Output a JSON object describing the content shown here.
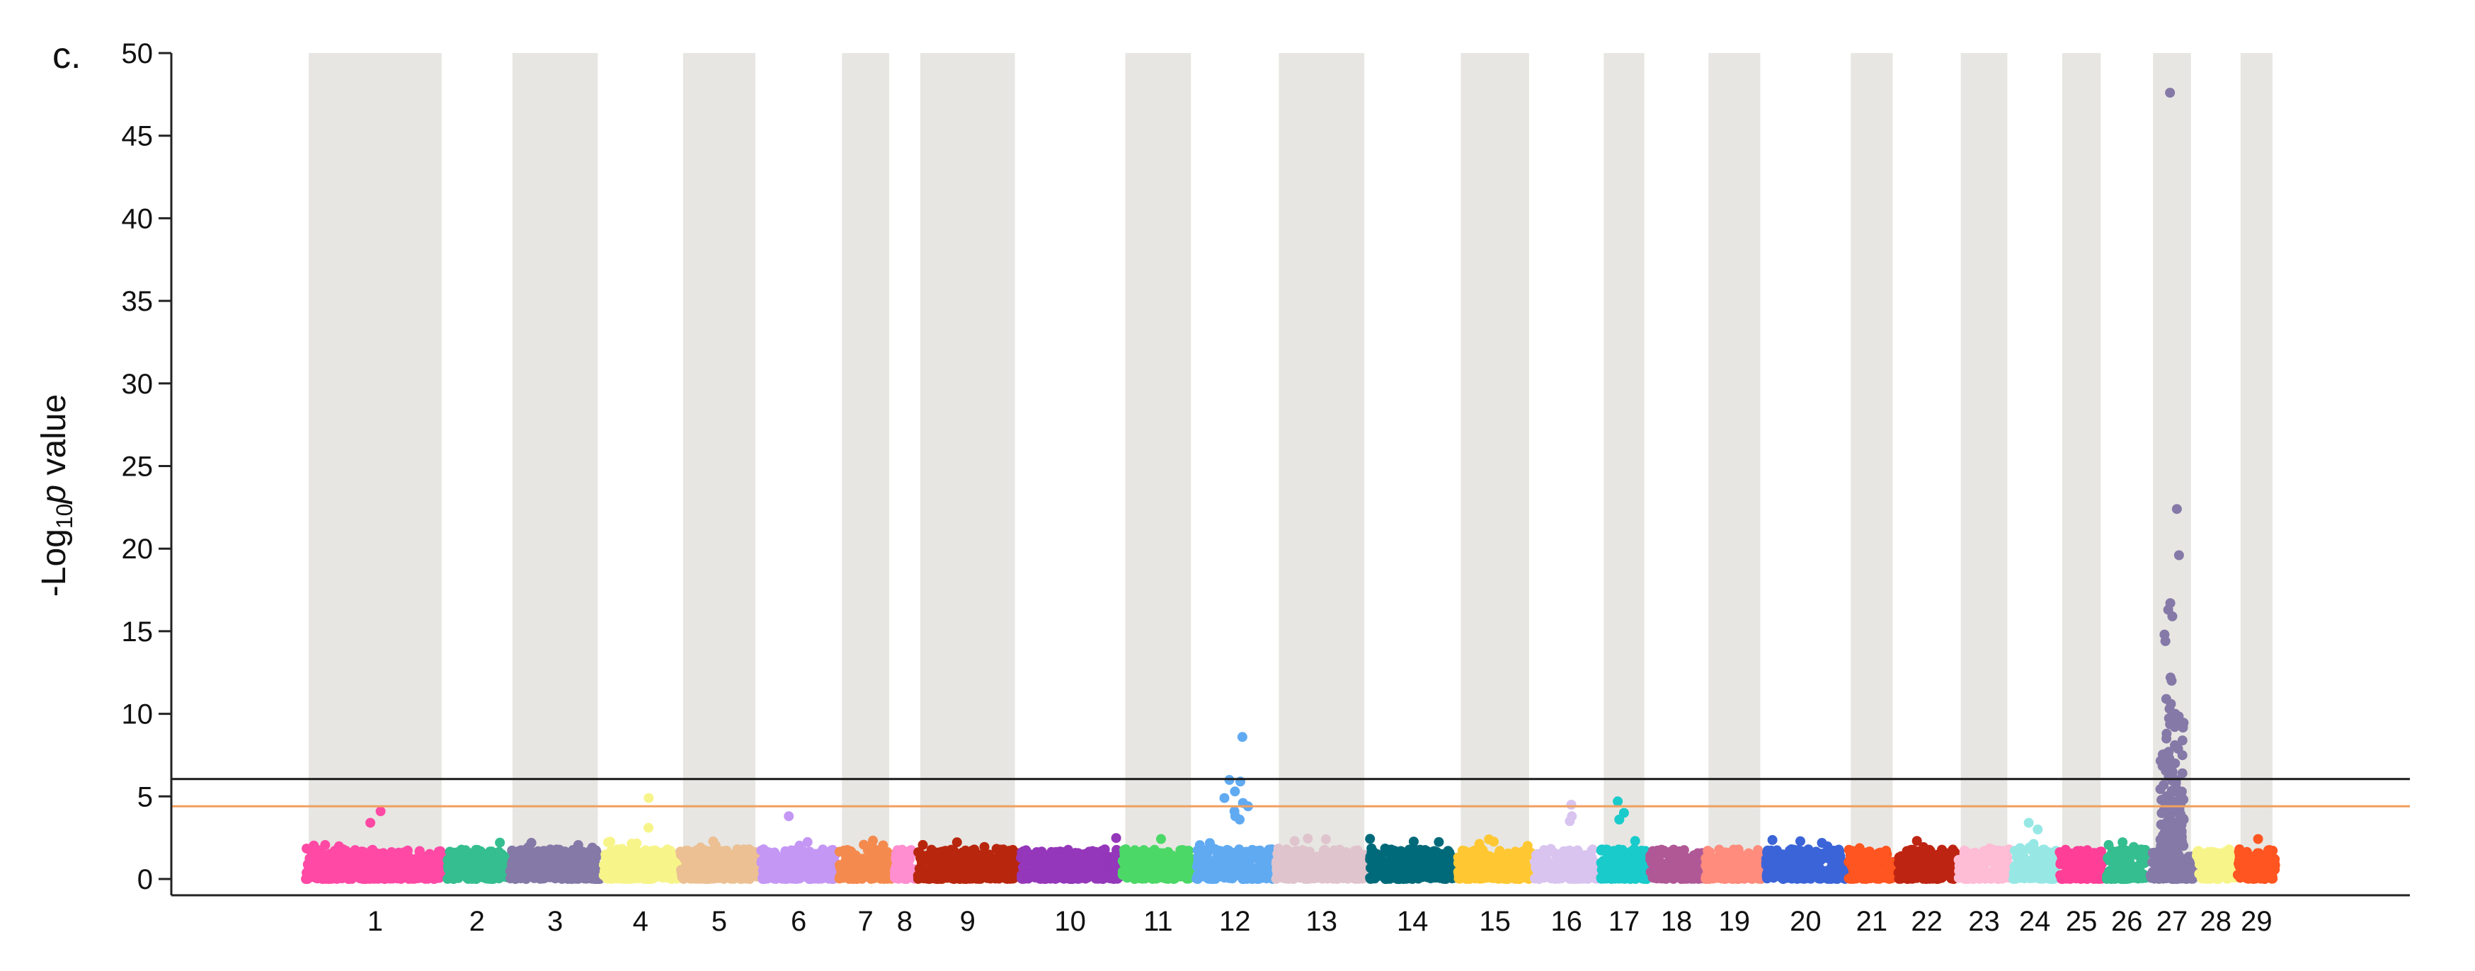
{
  "panel_label": "c.",
  "chart_data": {
    "type": "scatter",
    "subtype": "manhattan",
    "ylabel_parts": {
      "prefix": "-Log",
      "subscript": "10",
      "italic": "p",
      "suffix": " value"
    },
    "ylim": [
      0,
      50
    ],
    "yticks": [
      "0",
      "5",
      "10",
      "15",
      "20",
      "25",
      "30",
      "35",
      "40",
      "45",
      "50"
    ],
    "threshold_lines": [
      {
        "y": 6.05,
        "color": "#1a1a1a"
      },
      {
        "y": 4.4,
        "color": "#f0a060"
      }
    ],
    "alternating_band_color": "#e7e6e2",
    "chromosomes": [
      {
        "label": "1",
        "size": 2.1,
        "color": "#ff49a5",
        "shaded": true
      },
      {
        "label": "2",
        "size": 0.9,
        "color": "#35be8f",
        "shaded": false
      },
      {
        "label": "3",
        "size": 1.38,
        "color": "#8579a8",
        "shaded": true
      },
      {
        "label": "4",
        "size": 1.12,
        "color": "#f7f58a",
        "shaded": false
      },
      {
        "label": "5",
        "size": 1.18,
        "color": "#ecc093",
        "shaded": true
      },
      {
        "label": "6",
        "size": 1.14,
        "color": "#c497f5",
        "shaded": false
      },
      {
        "label": "7",
        "size": 0.8,
        "color": "#f58a4e",
        "shaded": true
      },
      {
        "label": "8",
        "size": 0.3,
        "color": "#ff8ed0",
        "shaded": false
      },
      {
        "label": "9",
        "size": 1.52,
        "color": "#b9260e",
        "shaded": true
      },
      {
        "label": "10",
        "size": 1.5,
        "color": "#9537ba",
        "shaded": false
      },
      {
        "label": "11",
        "size": 1.08,
        "color": "#4cd867",
        "shaded": true
      },
      {
        "label": "12",
        "size": 1.16,
        "color": "#60aaf2",
        "shaded": false
      },
      {
        "label": "13",
        "size": 1.38,
        "color": "#e0c4cd",
        "shaded": true
      },
      {
        "label": "14",
        "size": 1.29,
        "color": "#006a7a",
        "shaded": false
      },
      {
        "label": "15",
        "size": 1.12,
        "color": "#ffc832",
        "shaded": true
      },
      {
        "label": "16",
        "size": 0.96,
        "color": "#d9c4f0",
        "shaded": false
      },
      {
        "label": "17",
        "size": 0.7,
        "color": "#19cbcb",
        "shaded": true
      },
      {
        "label": "18",
        "size": 0.8,
        "color": "#b05896",
        "shaded": false
      },
      {
        "label": "19",
        "size": 0.87,
        "color": "#ff8c7c",
        "shaded": true
      },
      {
        "label": "20",
        "size": 1.2,
        "color": "#3b64d8",
        "shaded": false
      },
      {
        "label": "21",
        "size": 0.72,
        "color": "#ff5520",
        "shaded": true
      },
      {
        "label": "22",
        "size": 0.86,
        "color": "#be2412",
        "shaded": false
      },
      {
        "label": "23",
        "size": 0.79,
        "color": "#ffbcd5",
        "shaded": true
      },
      {
        "label": "24",
        "size": 0.66,
        "color": "#97e8e5",
        "shaded": false
      },
      {
        "label": "25",
        "size": 0.67,
        "color": "#ff3f97",
        "shaded": true
      },
      {
        "label": "26",
        "size": 0.62,
        "color": "#35be8f",
        "shaded": false
      },
      {
        "label": "27",
        "size": 0.66,
        "color": "#8579a8",
        "shaded": true
      },
      {
        "label": "28",
        "size": 0.58,
        "color": "#f7f58a",
        "shaded": false
      },
      {
        "label": "29",
        "size": 0.57,
        "color": "#ff5520",
        "shaded": true
      }
    ],
    "peaks": [
      {
        "chromosome": "12",
        "values": [
          8.6,
          6.0,
          5.9,
          5.3,
          4.9,
          4.6,
          4.4,
          4.1,
          3.8,
          3.6
        ]
      },
      {
        "chromosome": "27",
        "values": [
          47.6,
          22.4,
          19.6,
          16.7,
          16.3,
          15.9,
          14.8,
          14.4,
          12.2,
          12.0,
          10.9,
          10.6,
          10.3,
          10.0,
          9.6,
          9.2,
          8.8,
          8.5,
          8.1,
          7.7,
          7.3,
          7.0,
          6.6,
          6.2,
          5.8,
          5.4,
          5.0,
          4.7,
          4.4,
          4.1,
          3.8,
          3.5
        ]
      },
      {
        "chromosome": "17",
        "values": [
          4.7,
          4.0,
          3.6
        ]
      },
      {
        "chromosome": "16",
        "values": [
          4.5,
          3.8,
          3.5
        ]
      },
      {
        "chromosome": "4",
        "values": [
          4.9,
          3.1
        ]
      },
      {
        "chromosome": "1",
        "values": [
          4.1,
          3.4
        ]
      },
      {
        "chromosome": "6",
        "values": [
          3.8
        ]
      },
      {
        "chromosome": "24",
        "values": [
          3.4,
          3.0
        ]
      }
    ]
  }
}
